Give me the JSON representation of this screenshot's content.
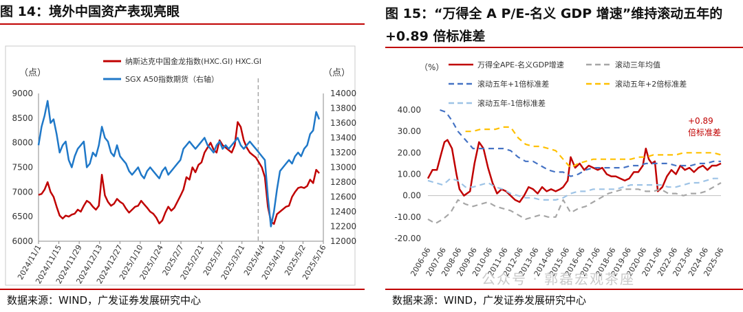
{
  "left": {
    "title": "图 14：境外中国资产表现亮眼",
    "source": "数据来源：WIND，广发证券发展研究中心",
    "chart_data": {
      "type": "line",
      "title": "",
      "ylabel_left": "（点）",
      "ylabel_right": "（点）",
      "ylim_left": [
        6000,
        9000
      ],
      "ylim_right": [
        12000,
        14000
      ],
      "yticks_left": [
        "6000",
        "6500",
        "7000",
        "7500",
        "8000",
        "8500",
        "9000"
      ],
      "yticks_right": [
        "12000",
        "12200",
        "12400",
        "12600",
        "12800",
        "13000",
        "13200",
        "13400",
        "13600",
        "13800",
        "14000"
      ],
      "x_tick_labels": [
        "2024/11/1",
        "2024/11/15",
        "2024/11/29",
        "2024/12/13",
        "2024/12/27",
        "2025/1/10",
        "2025/1/24",
        "2025/2/7",
        "2025/2/21",
        "2025/3/7",
        "2025/3/21",
        "2025/4/4",
        "2025/4/18",
        "2025/5/2",
        "2025/5/16"
      ],
      "series": [
        {
          "name": "纳斯达克中国金龙指数(HXC.GI) HXC.GI",
          "axis": "left",
          "color": "#c00000",
          "values": [
            6940,
            6960,
            7050,
            7200,
            7000,
            6900,
            6700,
            6520,
            6460,
            6520,
            6500,
            6540,
            6560,
            6640,
            6600,
            6720,
            6820,
            6780,
            6700,
            6640,
            6720,
            7350,
            6930,
            6800,
            6720,
            6760,
            6860,
            6800,
            6760,
            6660,
            6580,
            6640,
            6700,
            6720,
            6820,
            6750,
            6680,
            6600,
            6560,
            6480,
            6360,
            6420,
            6580,
            6700,
            6620,
            6680,
            6800,
            6920,
            7050,
            7300,
            7250,
            7500,
            7400,
            7550,
            7600,
            7800,
            7900,
            8000,
            7860,
            7800,
            8050,
            7950,
            7900,
            7850,
            7800,
            7950,
            8420,
            8320,
            8050,
            7900,
            7800,
            7750,
            7700,
            7600,
            7500,
            7300,
            6700,
            6400,
            6350,
            6550,
            6600,
            6650,
            6700,
            6720,
            6900,
            7000,
            7080,
            7100,
            7080,
            7120,
            7250,
            7180,
            7450,
            7380
          ]
        },
        {
          "name": "SGX A50指数期货（右轴）",
          "axis": "right",
          "color": "#1f78c8",
          "values": [
            13300,
            13550,
            13700,
            13900,
            13600,
            13650,
            13450,
            13200,
            13300,
            13350,
            13100,
            13000,
            13150,
            13250,
            13300,
            13350,
            13000,
            13050,
            13200,
            13150,
            13300,
            13550,
            13400,
            13350,
            13200,
            13150,
            13300,
            13150,
            13100,
            13050,
            12950,
            12900,
            12950,
            13000,
            12900,
            12850,
            12950,
            13000,
            12950,
            12900,
            12850,
            12950,
            13000,
            12900,
            12950,
            13000,
            13050,
            13100,
            13250,
            13300,
            13350,
            13300,
            13250,
            13300,
            13350,
            13400,
            13300,
            13250,
            13200,
            13300,
            13350,
            13250,
            13300,
            13250,
            13300,
            13350,
            13400,
            13300,
            13250,
            13300,
            13350,
            13300,
            13250,
            13200,
            13150,
            13100,
            12600,
            12200,
            12400,
            12700,
            12950,
            13000,
            13050,
            13100,
            13050,
            13150,
            13200,
            13150,
            13250,
            13300,
            13450,
            13500,
            13750,
            13650
          ]
        }
      ],
      "annotations": []
    }
  },
  "right": {
    "title": "图 15：“万得全 A P/E-名义 GDP 增速”维持滚动五年的+0.89 倍标准差",
    "source": "数据来源：WIND，广发证券发展研究中心",
    "watermark": "公众号 · 郭磊宏观茶座",
    "chart_data": {
      "type": "line",
      "title": "",
      "ylabel": "（%）",
      "ylim": [
        -20,
        40
      ],
      "yticks": [
        "40.00",
        "30.00",
        "20.00",
        "10.00",
        "0.00",
        "-10.00",
        "-20.00"
      ],
      "x_tick_labels": [
        "2006-06",
        "2007-06",
        "2008-06",
        "2009-06",
        "2010-06",
        "2011-06",
        "2012-06",
        "2013-06",
        "2014-06",
        "2015-06",
        "2016-06",
        "2017-06",
        "2018-06",
        "2019-06",
        "2020-06",
        "2021-06",
        "2022-06",
        "2023-06",
        "2024-06",
        "2025-06"
      ],
      "x_start": 2006.0,
      "x_end": 2025.5,
      "annotation": {
        "text_line1": "+0.89",
        "text_line2": "倍标准差",
        "color": "#c00000"
      },
      "series": [
        {
          "name": "万得全APE-名义GDP增速",
          "color": "#c00000",
          "style": "solid",
          "x": [
            2006.0,
            2006.3,
            2006.6,
            2006.9,
            2007.1,
            2007.3,
            2007.6,
            2007.9,
            2008.1,
            2008.4,
            2008.8,
            2009.1,
            2009.4,
            2009.7,
            2010.0,
            2010.3,
            2010.6,
            2010.9,
            2011.2,
            2011.5,
            2011.8,
            2012.1,
            2012.4,
            2012.7,
            2013.0,
            2013.3,
            2013.6,
            2013.9,
            2014.2,
            2014.5,
            2014.8,
            2015.0,
            2015.3,
            2015.5,
            2015.8,
            2016.1,
            2016.4,
            2016.7,
            2017.0,
            2017.3,
            2017.6,
            2017.9,
            2018.2,
            2018.5,
            2018.8,
            2019.1,
            2019.4,
            2019.7,
            2020.0,
            2020.3,
            2020.5,
            2020.7,
            2020.9,
            2021.1,
            2021.3,
            2021.6,
            2021.9,
            2022.2,
            2022.5,
            2022.8,
            2023.1,
            2023.4,
            2023.7,
            2024.0,
            2024.3,
            2024.6,
            2024.9,
            2025.2,
            2025.5
          ],
          "values": [
            8,
            12,
            12,
            20,
            25,
            26,
            22,
            10,
            3,
            0,
            2,
            15,
            25,
            22,
            13,
            6,
            1,
            3,
            2,
            0,
            -2,
            -3,
            0,
            4,
            3,
            1,
            4,
            2,
            3,
            2,
            3,
            4,
            7,
            18,
            13,
            15,
            12,
            14,
            13,
            12,
            13,
            10,
            9,
            9,
            8,
            7,
            8,
            11,
            11,
            14,
            22,
            17,
            15,
            16,
            2,
            4,
            9,
            12,
            10,
            14,
            12,
            13,
            11,
            13,
            14,
            12,
            14,
            14,
            15
          ]
        },
        {
          "name": "滚动三年均值",
          "color": "#a6a6a6",
          "style": "dash",
          "x": [
            2006.0,
            2006.5,
            2007.0,
            2007.5,
            2008.0,
            2008.5,
            2009.0,
            2009.5,
            2010.0,
            2010.5,
            2011.0,
            2011.5,
            2012.0,
            2012.5,
            2013.0,
            2013.5,
            2014.0,
            2014.5,
            2015.0,
            2015.5,
            2016.0,
            2016.5,
            2017.0,
            2017.5,
            2018.0,
            2018.5,
            2019.0,
            2019.5,
            2020.0,
            2020.5,
            2021.0,
            2021.5,
            2022.0,
            2022.5,
            2023.0,
            2023.5,
            2024.0,
            2024.5,
            2025.0,
            2025.5
          ],
          "values": [
            -11,
            -13,
            -11,
            -8,
            -2,
            -4,
            -5,
            -4,
            -3,
            -5,
            -6,
            -7,
            -9,
            -11,
            -10,
            -9,
            -10,
            -10,
            -2,
            -8,
            -6,
            -5,
            -3,
            -1,
            1,
            2,
            3,
            3,
            3,
            2,
            2,
            3,
            1,
            1,
            0,
            1,
            1,
            2,
            4,
            6
          ]
        },
        {
          "name": "滚动五年+1倍标准差",
          "color": "#4472c4",
          "style": "dash",
          "x": [
            2006.8,
            2007.2,
            2007.6,
            2008.0,
            2008.5,
            2009.0,
            2009.5,
            2010.0,
            2010.5,
            2011.0,
            2011.5,
            2012.0,
            2012.5,
            2013.0,
            2013.5,
            2014.0,
            2014.5,
            2015.0,
            2015.5,
            2016.0,
            2016.5,
            2017.0,
            2017.5,
            2018.0,
            2018.5,
            2019.0,
            2019.5,
            2020.0,
            2020.5,
            2021.0,
            2021.5,
            2022.0,
            2022.5,
            2023.0,
            2023.5,
            2024.0,
            2024.5,
            2025.0,
            2025.5
          ],
          "values": [
            40,
            39,
            35,
            30,
            26,
            22,
            22,
            22,
            22,
            22,
            21,
            18,
            16,
            16,
            14,
            12,
            11,
            11,
            9,
            10,
            12,
            13,
            13,
            13,
            13,
            13,
            14,
            14,
            15,
            15,
            15,
            15,
            14,
            14,
            14,
            15,
            15,
            16,
            16
          ]
        },
        {
          "name": "滚动五年+2倍标准差",
          "color": "#ffc000",
          "style": "dash",
          "x": [
            2008.5,
            2009.0,
            2009.5,
            2010.0,
            2010.5,
            2011.0,
            2011.5,
            2012.0,
            2012.5,
            2013.0,
            2013.5,
            2014.0,
            2014.5,
            2015.0,
            2015.5,
            2016.0,
            2016.5,
            2017.0,
            2017.5,
            2018.0,
            2018.5,
            2019.0,
            2019.5,
            2020.0,
            2020.5,
            2021.0,
            2021.5,
            2022.0,
            2022.5,
            2023.0,
            2023.5,
            2024.0,
            2024.5,
            2025.0,
            2025.5
          ],
          "values": [
            30,
            30,
            31,
            31,
            31,
            32,
            32,
            27,
            24,
            23,
            23,
            22,
            21,
            17,
            13,
            15,
            16,
            17,
            17,
            17,
            17,
            17,
            17,
            18,
            18,
            19,
            19,
            19,
            19,
            20,
            20,
            20,
            20,
            20,
            19
          ]
        },
        {
          "name": "滚动五年-1倍标准差",
          "color": "#9dc3e6",
          "style": "dash",
          "x": [
            2006.0,
            2006.5,
            2007.0,
            2007.5,
            2008.0,
            2008.5,
            2009.0,
            2009.5,
            2010.0,
            2010.5,
            2011.0,
            2011.5,
            2012.0,
            2012.5,
            2013.0,
            2013.5,
            2014.0,
            2014.5,
            2015.0,
            2015.5,
            2016.0,
            2016.5,
            2017.0,
            2017.5,
            2018.0,
            2018.5,
            2019.0,
            2019.5,
            2020.0,
            2020.5,
            2021.0,
            2021.5,
            2022.0,
            2022.5,
            2023.0,
            2023.5,
            2024.0,
            2024.5,
            2025.0,
            2025.5
          ],
          "values": [
            7,
            6,
            5,
            8,
            7,
            4,
            4,
            5,
            6,
            4,
            3,
            1,
            0,
            -1,
            -1,
            -2,
            -2,
            -2,
            -1,
            1,
            2,
            2,
            3,
            3,
            3,
            3,
            4,
            5,
            5,
            5,
            5,
            5,
            4,
            4,
            5,
            6,
            6,
            7,
            8,
            8
          ]
        }
      ]
    }
  }
}
